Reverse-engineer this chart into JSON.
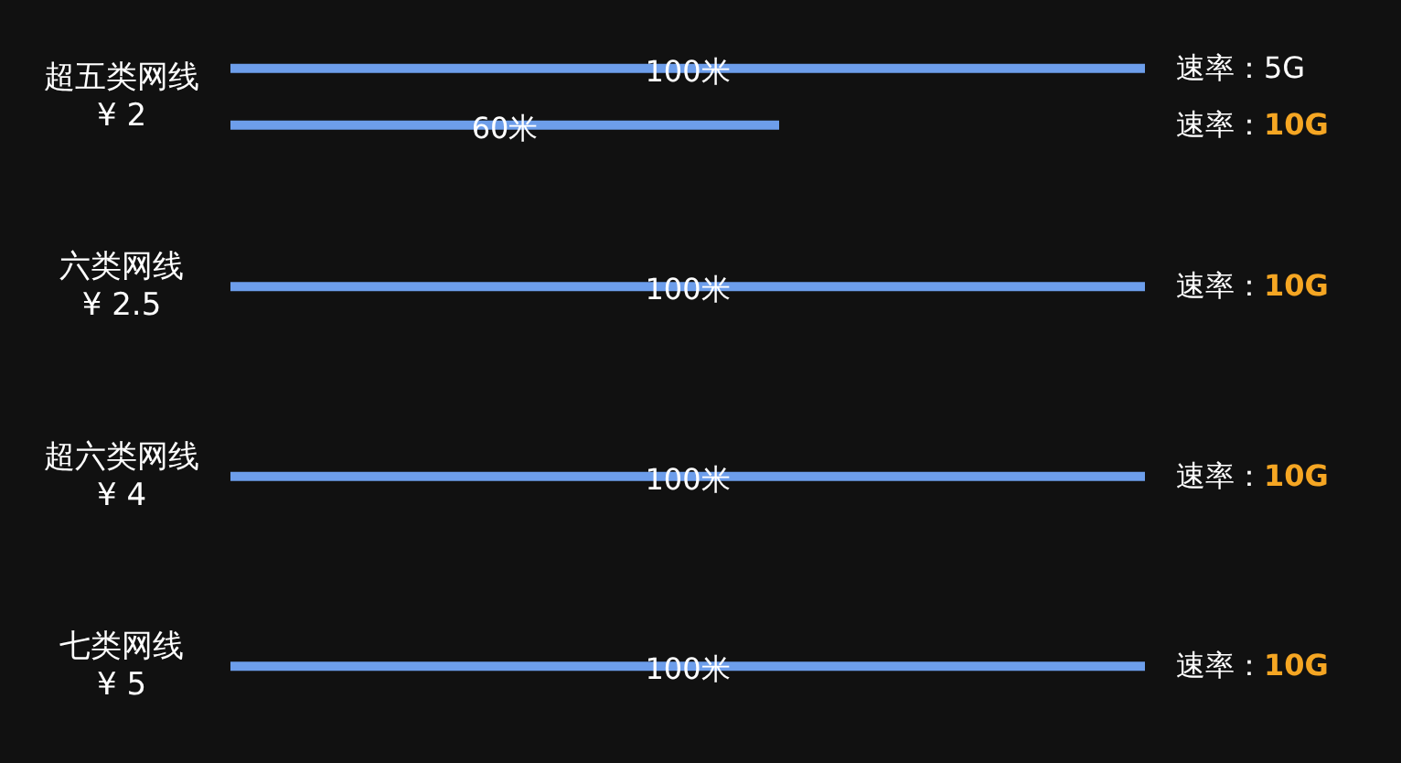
{
  "chart_data": {
    "type": "bar",
    "orientation": "horizontal",
    "categories": [
      "超五类网线\n¥ 2",
      "六类网线\n¥ 2.5",
      "超六类网线\n¥ 4",
      "七类网线\n¥ 5"
    ],
    "series": [
      {
        "name": "速率：5G",
        "color": "#6d9eeb",
        "values": [
          100,
          null,
          null,
          null
        ],
        "value_labels": [
          "100米",
          null,
          null,
          null
        ]
      },
      {
        "name": "速率：10G",
        "color": "#6d9eeb",
        "values": [
          60,
          100,
          100,
          100
        ],
        "value_labels": [
          "60米",
          "100米",
          "100米",
          "100米"
        ]
      }
    ],
    "xlim": [
      0,
      100
    ],
    "tick_labels": "y"
  }
}
